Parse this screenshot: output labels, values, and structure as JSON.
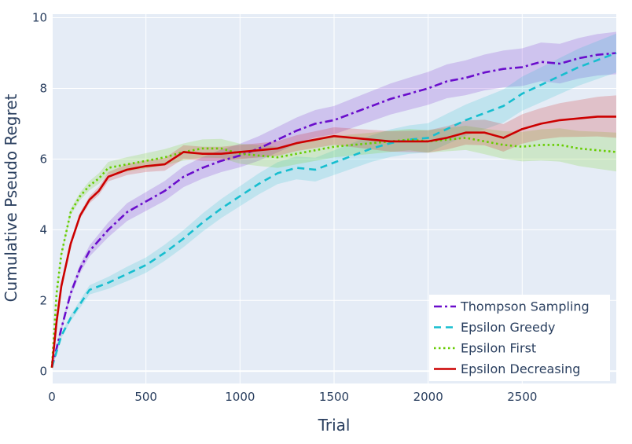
{
  "chart_data": {
    "type": "line",
    "xlabel": "Trial",
    "ylabel": "Cumulative Pseudo Regret",
    "xlim": [
      0,
      3000
    ],
    "ylim": [
      -0.35,
      10.1
    ],
    "xticks": [
      0,
      500,
      1000,
      1500,
      2000,
      2500
    ],
    "yticks": [
      0,
      2,
      4,
      6,
      8,
      10
    ],
    "grid": true,
    "legend_position": "bottom-right",
    "plot_background": "#e5ecf6",
    "series": [
      {
        "name": "Thompson Sampling",
        "color": "#6a0dcc",
        "dash": "dashdot",
        "band_halfwidth": [
          0.05,
          0.25,
          0.3,
          0.35,
          0.4,
          0.45,
          0.5,
          0.55,
          0.6
        ],
        "x": [
          0,
          50,
          100,
          150,
          200,
          300,
          400,
          500,
          600,
          700,
          800,
          900,
          1000,
          1100,
          1200,
          1300,
          1400,
          1500,
          1600,
          1700,
          1800,
          1900,
          2000,
          2100,
          2200,
          2300,
          2400,
          2500,
          2600,
          2700,
          2800,
          2900,
          3000
        ],
        "y": [
          0.1,
          1.2,
          2.2,
          2.9,
          3.4,
          4.0,
          4.5,
          4.8,
          5.1,
          5.5,
          5.75,
          5.95,
          6.1,
          6.3,
          6.55,
          6.8,
          7.0,
          7.1,
          7.3,
          7.5,
          7.7,
          7.85,
          8.0,
          8.2,
          8.3,
          8.45,
          8.55,
          8.6,
          8.75,
          8.7,
          8.85,
          8.95,
          9.0
        ]
      },
      {
        "name": "Epsilon Greedy",
        "color": "#17becf",
        "dash": "dash",
        "band_halfwidth": [
          0.05,
          0.2,
          0.25,
          0.3,
          0.35,
          0.4,
          0.45,
          0.5,
          0.55
        ],
        "x": [
          0,
          50,
          100,
          150,
          200,
          300,
          400,
          500,
          600,
          700,
          800,
          900,
          1000,
          1100,
          1200,
          1300,
          1400,
          1500,
          1600,
          1700,
          1800,
          1900,
          2000,
          2100,
          2200,
          2300,
          2400,
          2500,
          2600,
          2700,
          2800,
          2900,
          3000
        ],
        "y": [
          0.1,
          1.0,
          1.5,
          1.9,
          2.3,
          2.5,
          2.75,
          3.0,
          3.35,
          3.75,
          4.2,
          4.6,
          4.95,
          5.3,
          5.6,
          5.75,
          5.7,
          5.9,
          6.1,
          6.3,
          6.45,
          6.55,
          6.6,
          6.85,
          7.1,
          7.3,
          7.5,
          7.85,
          8.1,
          8.35,
          8.6,
          8.8,
          9.0
        ]
      },
      {
        "name": "Epsilon First",
        "color": "#66cc00",
        "dash": "dot",
        "band_halfwidth": [
          0.05,
          0.2,
          0.25,
          0.3,
          0.3,
          0.3,
          0.35,
          0.45,
          0.55
        ],
        "x": [
          0,
          25,
          50,
          100,
          150,
          200,
          250,
          300,
          400,
          500,
          600,
          700,
          800,
          900,
          1000,
          1100,
          1200,
          1300,
          1400,
          1500,
          1600,
          1700,
          1800,
          1900,
          2000,
          2100,
          2200,
          2300,
          2400,
          2500,
          2600,
          2700,
          2800,
          2900,
          3000
        ],
        "y": [
          0.1,
          2.2,
          3.3,
          4.5,
          4.95,
          5.25,
          5.45,
          5.75,
          5.85,
          5.95,
          6.05,
          6.2,
          6.3,
          6.3,
          6.15,
          6.1,
          6.05,
          6.15,
          6.25,
          6.35,
          6.4,
          6.45,
          6.5,
          6.55,
          6.5,
          6.55,
          6.6,
          6.5,
          6.4,
          6.35,
          6.4,
          6.4,
          6.3,
          6.25,
          6.2
        ]
      },
      {
        "name": "Epsilon Decreasing",
        "color": "#cc0000",
        "dash": "solid",
        "band_halfwidth": [
          0.05,
          0.15,
          0.2,
          0.2,
          0.25,
          0.3,
          0.35,
          0.45,
          0.6
        ],
        "x": [
          0,
          25,
          50,
          100,
          150,
          200,
          250,
          300,
          400,
          500,
          600,
          700,
          800,
          900,
          1000,
          1100,
          1200,
          1300,
          1400,
          1500,
          1600,
          1700,
          1800,
          1900,
          2000,
          2100,
          2200,
          2300,
          2400,
          2500,
          2600,
          2700,
          2800,
          2900,
          3000
        ],
        "y": [
          0.1,
          1.4,
          2.4,
          3.6,
          4.4,
          4.85,
          5.1,
          5.5,
          5.7,
          5.8,
          5.85,
          6.2,
          6.15,
          6.15,
          6.2,
          6.25,
          6.3,
          6.45,
          6.55,
          6.65,
          6.6,
          6.55,
          6.5,
          6.5,
          6.5,
          6.6,
          6.75,
          6.75,
          6.6,
          6.85,
          7.0,
          7.1,
          7.15,
          7.2,
          7.2
        ]
      }
    ]
  }
}
